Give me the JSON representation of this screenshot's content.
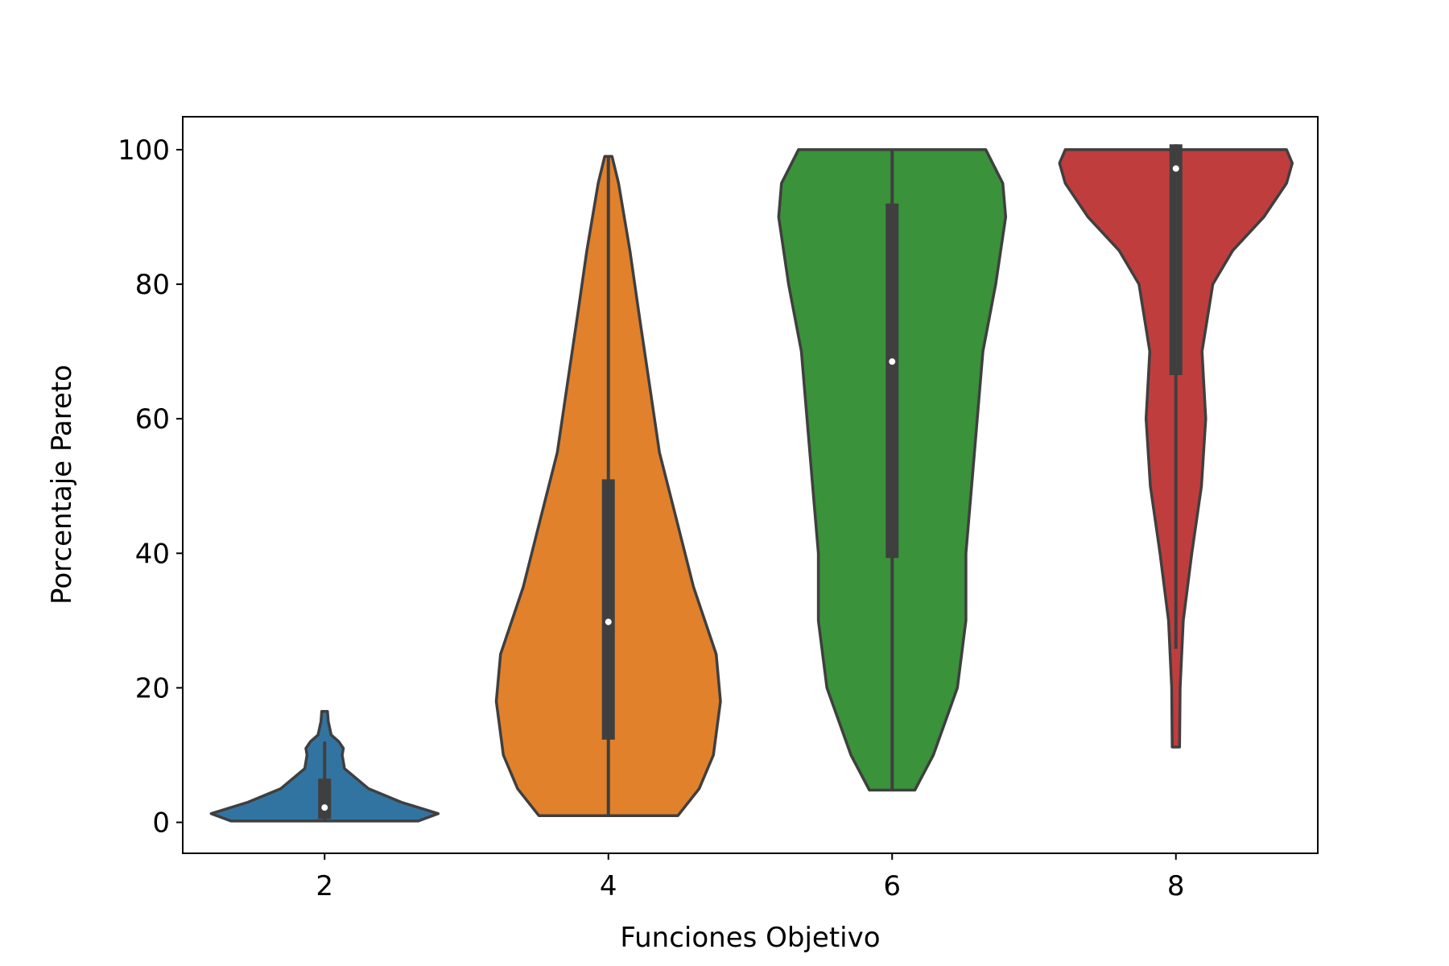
{
  "chart_data": {
    "type": "violin",
    "x_label": "Funciones Objetivo",
    "y_label": "Porcentaje Pareto",
    "categories": [
      "2",
      "4",
      "6",
      "8"
    ],
    "ylim": [
      -4.6,
      104.9
    ],
    "yticks": [
      0,
      20,
      40,
      60,
      80,
      100
    ],
    "edge_color": "#3f3f3f",
    "series": [
      {
        "color": "#3274a1",
        "min": 0.2,
        "q1": 0.5,
        "median": 2.2,
        "q3": 6.5,
        "max": 12,
        "profile": {
          "y": [
            0.2,
            1.3,
            3,
            5,
            8,
            10,
            11,
            12,
            13,
            15,
            16.5
          ],
          "width": [
            0.33,
            0.4,
            0.27,
            0.155,
            0.07,
            0.062,
            0.066,
            0.05,
            0.023,
            0.013,
            0.01
          ]
        }
      },
      {
        "color": "#e1812c",
        "min": 1,
        "q1": 12.3,
        "median": 29.8,
        "q3": 51,
        "max": 99,
        "profile": {
          "y": [
            1,
            5,
            10,
            18,
            25,
            35,
            45,
            55,
            65,
            75,
            85,
            95,
            99
          ],
          "width": [
            0.245,
            0.32,
            0.37,
            0.395,
            0.38,
            0.3,
            0.24,
            0.18,
            0.145,
            0.11,
            0.076,
            0.036,
            0.013
          ]
        }
      },
      {
        "color": "#3a923a",
        "min": 4.8,
        "q1": 39.3,
        "median": 68.5,
        "q3": 92,
        "max": 100,
        "profile": {
          "y": [
            4.8,
            10,
            20,
            30,
            40,
            50,
            60,
            70,
            80,
            90,
            95,
            100
          ],
          "width": [
            0.08,
            0.145,
            0.23,
            0.26,
            0.26,
            0.28,
            0.3,
            0.32,
            0.365,
            0.4,
            0.39,
            0.33
          ]
        }
      },
      {
        "color": "#c03d3e",
        "min": 25.8,
        "q1": 66.5,
        "median": 97.2,
        "q3": 100.8,
        "max": 100.8,
        "profile": {
          "y": [
            11.2,
            20,
            30,
            40,
            50,
            60,
            70,
            80,
            85,
            90,
            95,
            98,
            100
          ],
          "width": [
            0.013,
            0.015,
            0.026,
            0.056,
            0.09,
            0.105,
            0.092,
            0.13,
            0.2,
            0.31,
            0.39,
            0.41,
            0.39
          ]
        }
      }
    ]
  }
}
